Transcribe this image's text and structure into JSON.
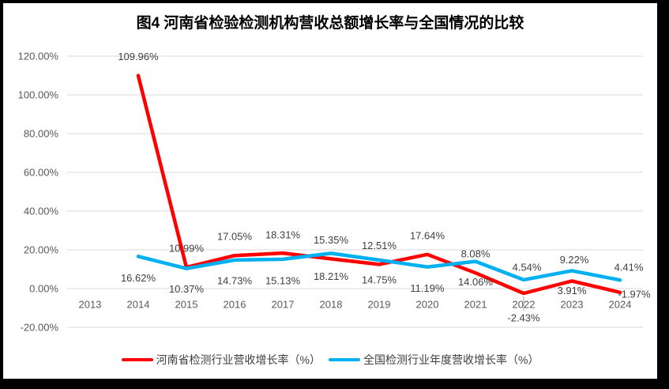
{
  "title": "图4  河南省检验检测机构营收总额增长率与全国情况的比较",
  "colors": {
    "grid": "#D9D9D9",
    "tick_text": "#595959",
    "label_text": "#404040",
    "leader": "#A6A6A6",
    "series_red": "#FF0000",
    "series_blue": "#00B0F0"
  },
  "chart_data": {
    "type": "line",
    "title": "图4  河南省检验检测机构营收总额增长率与全国情况的比较",
    "categories": [
      "2013",
      "2014",
      "2015",
      "2016",
      "2017",
      "2018",
      "2019",
      "2020",
      "2021",
      "2022",
      "2023",
      "2024"
    ],
    "ylim": [
      -20,
      120
    ],
    "ytick_step": 20,
    "grid": true,
    "legend_position": "bottom",
    "yticks": [
      {
        "value": -20,
        "label": "-20.00%"
      },
      {
        "value": 0,
        "label": "0.00%"
      },
      {
        "value": 20,
        "label": "20.00%"
      },
      {
        "value": 40,
        "label": "40.00%"
      },
      {
        "value": 60,
        "label": "60.00%"
      },
      {
        "value": 80,
        "label": "80.00%"
      },
      {
        "value": 100,
        "label": "100.00%"
      },
      {
        "value": 120,
        "label": "120.00%"
      }
    ],
    "series": [
      {
        "name": "河南省检测行业营收增长率（%）",
        "color": "#FF0000",
        "values": [
          null,
          109.96,
          10.99,
          17.05,
          18.31,
          15.35,
          12.51,
          17.64,
          8.08,
          -2.43,
          3.91,
          -1.97
        ],
        "data_labels": [
          "",
          "109.96%",
          "10.99%",
          "17.05%",
          "18.31%",
          "15.35%",
          "12.51%",
          "17.64%",
          "8.08%",
          "-2.43%",
          "3.91%",
          "-1.97%"
        ],
        "label_offsets": [
          null,
          [
            0,
            -24
          ],
          [
            0,
            -24
          ],
          [
            0,
            -24
          ],
          [
            0,
            -23
          ],
          [
            0,
            -24
          ],
          [
            0,
            -24
          ],
          [
            0,
            -24
          ],
          [
            0,
            -24
          ],
          [
            0,
            31
          ],
          [
            0,
            12
          ],
          [
            18,
            2
          ]
        ]
      },
      {
        "name": "全国检测行业年度营收增长率（%）",
        "color": "#00B0F0",
        "values": [
          null,
          16.62,
          10.37,
          14.73,
          15.13,
          18.21,
          14.75,
          11.19,
          14.06,
          4.54,
          9.22,
          4.41
        ],
        "data_labels": [
          "",
          "16.62%",
          "10.37%",
          "14.73%",
          "15.13%",
          "18.21%",
          "14.75%",
          "11.19%",
          "14.06%",
          "4.54%",
          "9.22%",
          "4.41%"
        ],
        "label_offsets": [
          null,
          [
            0,
            27
          ],
          [
            0,
            26
          ],
          [
            0,
            26
          ],
          [
            0,
            27
          ],
          [
            0,
            29
          ],
          [
            0,
            25
          ],
          [
            0,
            27
          ],
          [
            0,
            26
          ],
          [
            4,
            -16
          ],
          [
            3,
            -14
          ],
          [
            11,
            -16
          ]
        ]
      }
    ],
    "leader_line": {
      "series_index": 0,
      "category_index": 9
    }
  }
}
